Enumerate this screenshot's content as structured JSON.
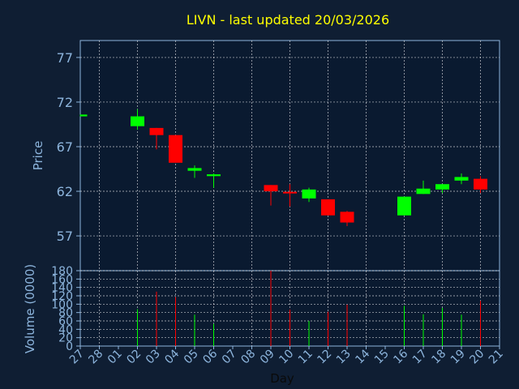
{
  "chart_data": {
    "type": "candlestick",
    "title": "LIVN - last updated 20/03/2026",
    "xlabel": "Day",
    "ylabel_price": "Price",
    "ylabel_volume": "Volume (0000)",
    "x_ticks": [
      "27",
      "28",
      "01",
      "02",
      "03",
      "04",
      "05",
      "06",
      "07",
      "08",
      "09",
      "10",
      "11",
      "12",
      "13",
      "14",
      "15",
      "16",
      "17",
      "18",
      "19",
      "20",
      "21"
    ],
    "price_ylim": [
      53.1,
      78.9
    ],
    "price_ticks": [
      57,
      62,
      67,
      72,
      77
    ],
    "volume_ylim": [
      0,
      180
    ],
    "volume_ticks": [
      0,
      20,
      40,
      60,
      80,
      100,
      120,
      140,
      160,
      180
    ],
    "colors": {
      "background": "#0f1e33",
      "plot_background": "#0a1a30",
      "up": "#00ff00",
      "down": "#ff0000",
      "grid": "#ffffff",
      "axis_text": "#8cb4dc",
      "title": "#ffff00"
    },
    "candles": [
      {
        "day": "27",
        "open": 70.4,
        "close": 70.6,
        "high": 70.6,
        "low": 70.4,
        "volume": 0
      },
      {
        "day": "02",
        "open": 69.3,
        "close": 70.4,
        "high": 71.2,
        "low": 68.9,
        "volume": 88
      },
      {
        "day": "03",
        "open": 69.1,
        "close": 68.3,
        "high": 69.1,
        "low": 66.7,
        "volume": 130
      },
      {
        "day": "04",
        "open": 68.3,
        "close": 65.2,
        "high": 68.3,
        "low": 65.2,
        "volume": 117
      },
      {
        "day": "05",
        "open": 64.3,
        "close": 64.6,
        "high": 64.9,
        "low": 63.5,
        "volume": 75
      },
      {
        "day": "06",
        "open": 63.7,
        "close": 63.9,
        "high": 64.0,
        "low": 62.4,
        "volume": 53
      },
      {
        "day": "09",
        "open": 62.7,
        "close": 62.0,
        "high": 62.7,
        "low": 60.4,
        "volume": 180
      },
      {
        "day": "10",
        "open": 61.9,
        "close": 61.8,
        "high": 62.8,
        "low": 60.3,
        "volume": 87
      },
      {
        "day": "11",
        "open": 61.2,
        "close": 62.2,
        "high": 62.4,
        "low": 60.8,
        "volume": 60
      },
      {
        "day": "12",
        "open": 61.1,
        "close": 59.3,
        "high": 61.1,
        "low": 59.3,
        "volume": 82
      },
      {
        "day": "13",
        "open": 59.7,
        "close": 58.5,
        "high": 59.8,
        "low": 58.1,
        "volume": 99
      },
      {
        "day": "16",
        "open": 59.3,
        "close": 61.4,
        "high": 61.4,
        "low": 59.3,
        "volume": 96
      },
      {
        "day": "17",
        "open": 61.7,
        "close": 62.3,
        "high": 63.2,
        "low": 61.7,
        "volume": 76
      },
      {
        "day": "18",
        "open": 62.2,
        "close": 62.8,
        "high": 62.8,
        "low": 61.8,
        "volume": 91
      },
      {
        "day": "19",
        "open": 63.2,
        "close": 63.6,
        "high": 64.0,
        "low": 62.8,
        "volume": 75
      },
      {
        "day": "20",
        "open": 63.4,
        "close": 62.2,
        "high": 63.7,
        "low": 61.8,
        "volume": 108
      }
    ]
  }
}
